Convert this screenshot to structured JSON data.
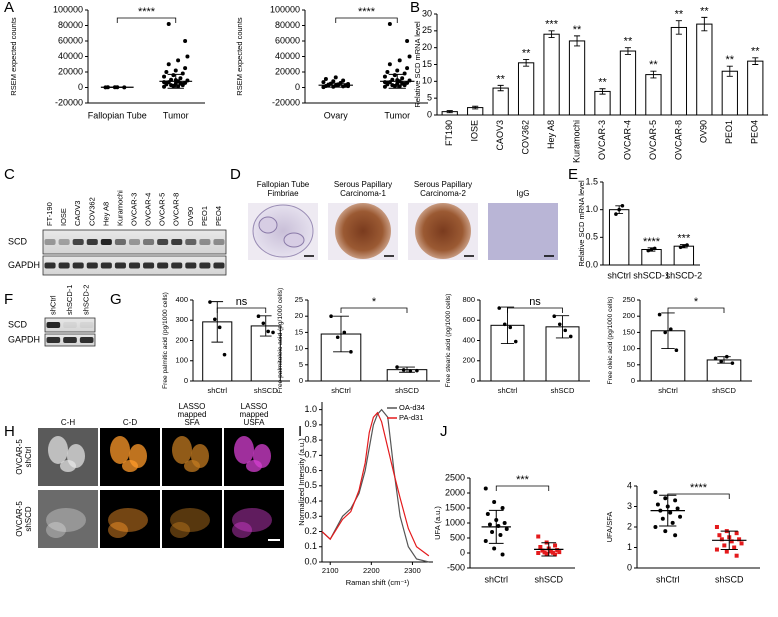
{
  "panels": [
    "A",
    "B",
    "C",
    "D",
    "E",
    "F",
    "G",
    "H",
    "I",
    "J"
  ],
  "blot_c": {
    "lanes": [
      "FT-190",
      "IOSE",
      "CAOV3",
      "COV362",
      "Hey A8",
      "Kuramochi",
      "OVCAR-3",
      "OVCAR-4",
      "OVCAR-5",
      "OVCAR-8",
      "OV90",
      "PEO1",
      "PEO4"
    ],
    "rows": [
      "SCD",
      "GAPDH"
    ]
  },
  "ihc_d": {
    "titles": [
      [
        "Fallopian Tube",
        "Fimbriae"
      ],
      [
        "Serous Papillary",
        "Carcinoma-1"
      ],
      [
        "Serous Papillary",
        "Carcinoma-2"
      ],
      [
        "IgG"
      ]
    ]
  },
  "blot_f": {
    "lanes": [
      "shCtrl",
      "shSCD-1",
      "shSCD-2"
    ],
    "rows": [
      "SCD",
      "GAPDH"
    ]
  },
  "srs_h": {
    "columns": [
      [
        "C-H"
      ],
      [
        "C-D"
      ],
      [
        "LASSO",
        "mapped",
        "SFA"
      ],
      [
        "LASSO",
        "mapped",
        "USFA"
      ]
    ],
    "rows": [
      [
        "OVCAR-5",
        "shCtrl"
      ],
      [
        "OVCAR-5",
        "shSCD"
      ]
    ]
  },
  "chart_data": [
    {
      "type": "strip",
      "ylabel": "RSEM expected counts",
      "categories": [
        "Fallopian Tube",
        "Tumor"
      ],
      "points": [
        [
          200,
          300,
          150,
          400,
          250
        ],
        [
          1000,
          2000,
          3000,
          4000,
          5000,
          6000,
          7000,
          8000,
          9000,
          10000,
          12000,
          14000,
          16000,
          18000,
          20000,
          22000,
          25000,
          30000,
          35000,
          40000,
          3000,
          5000,
          7000,
          2000,
          4500,
          6500,
          9500,
          60000,
          82000,
          1500
        ]
      ],
      "mean": [
        300,
        8000
      ],
      "sd": [
        150,
        9000
      ],
      "ylim": [
        -20000,
        100000
      ],
      "yticks": [
        -20000,
        0,
        20000,
        40000,
        60000,
        80000,
        100000
      ],
      "significance": {
        "label": "****",
        "between": [
          0,
          1
        ]
      }
    },
    {
      "type": "strip",
      "ylabel": "RSEM expected counts",
      "categories": [
        "Ovary",
        "Tumor"
      ],
      "points": [
        [
          500,
          1000,
          1500,
          2000,
          2500,
          3000,
          3500,
          4000,
          4500,
          5000,
          6000,
          7000,
          8000,
          9000,
          11000,
          13000,
          2200,
          2800,
          3300,
          1800
        ],
        [
          1000,
          2000,
          3000,
          4000,
          5000,
          6000,
          7000,
          8000,
          9000,
          10000,
          12000,
          14000,
          16000,
          18000,
          20000,
          22000,
          25000,
          30000,
          35000,
          40000,
          3000,
          5000,
          7000,
          2000,
          4500,
          6500,
          9500,
          60000,
          82000,
          1500
        ]
      ],
      "mean": [
        3000,
        8000
      ],
      "sd": [
        2500,
        9000
      ],
      "ylim": [
        -20000,
        100000
      ],
      "yticks": [
        -20000,
        0,
        20000,
        40000,
        60000,
        80000,
        100000
      ],
      "significance": {
        "label": "****",
        "between": [
          0,
          1
        ]
      }
    },
    {
      "type": "bar",
      "ylabel": "Relative SCD mRNA level",
      "categories": [
        "FT190",
        "IOSE",
        "CAOV3",
        "COV362",
        "Hey A8",
        "Kuramochi",
        "OVCAR-3",
        "OVCAR-4",
        "OVCAR-5",
        "OVCAR-8",
        "OV90",
        "PEO1",
        "PEO4"
      ],
      "values": [
        1,
        2.2,
        8,
        15.5,
        24,
        22,
        7,
        19,
        12,
        26,
        27,
        13,
        16
      ],
      "errors": [
        0.3,
        0.4,
        0.8,
        1,
        1,
        1.5,
        0.8,
        1,
        1,
        2,
        2,
        1.5,
        1
      ],
      "sig_labels": [
        null,
        null,
        "**",
        "**",
        "***",
        "**",
        "**",
        "**",
        "**",
        "**",
        "**",
        "**",
        "**"
      ],
      "ylim": [
        0,
        30
      ],
      "yticks": [
        0,
        5,
        10,
        15,
        20,
        25,
        30
      ]
    },
    {
      "type": "bar",
      "ylabel": "Relative SCD mRNA level",
      "categories": [
        "shCtrl",
        "shSCD-1",
        "shSCD-2"
      ],
      "values": [
        1.0,
        0.28,
        0.34
      ],
      "errors": [
        0.07,
        0.03,
        0.03
      ],
      "points": [
        [
          0.92,
          1.0,
          1.07
        ],
        [
          0.26,
          0.28,
          0.3
        ],
        [
          0.32,
          0.34,
          0.36
        ]
      ],
      "sig_labels": [
        null,
        "****",
        "***"
      ],
      "ylim": [
        0,
        1.5
      ],
      "yticks": [
        {
          "value": 0,
          "label": "0.0"
        },
        {
          "value": 0.5,
          "label": "0.5"
        },
        {
          "value": 1,
          "label": "1.0"
        },
        {
          "value": 1.5,
          "label": "1.5"
        }
      ]
    },
    {
      "type": "bar",
      "ylabel": "Free palmitic acid (pg/1000 cells)",
      "categories": [
        "shCtrl",
        "shSCD"
      ],
      "values": [
        292,
        272
      ],
      "errors": [
        100,
        50
      ],
      "points": [
        [
          390,
          305,
          265,
          130
        ],
        [
          320,
          285,
          245,
          240
        ]
      ],
      "ylim": [
        0,
        400
      ],
      "yticks": [
        0,
        100,
        200,
        300,
        400
      ],
      "significance": {
        "label": "ns",
        "between": [
          0,
          1
        ]
      }
    },
    {
      "type": "bar",
      "ylabel": "Free palmitoleic acid (pg/1000 cells)",
      "categories": [
        "shCtrl",
        "shSCD"
      ],
      "values": [
        14.5,
        3.5
      ],
      "errors": [
        5.5,
        0.8
      ],
      "points": [
        [
          20,
          13.5,
          15,
          9
        ],
        [
          4.3,
          3.4,
          3.1,
          3.2
        ]
      ],
      "ylim": [
        0,
        25
      ],
      "yticks": [
        0,
        5,
        10,
        15,
        20,
        25
      ],
      "significance": {
        "label": "*",
        "between": [
          0,
          1
        ]
      }
    },
    {
      "type": "bar",
      "ylabel": "Free stearic acid (pg/1000 cells)",
      "categories": [
        "shCtrl",
        "shSCD"
      ],
      "values": [
        550,
        535
      ],
      "errors": [
        180,
        110
      ],
      "points": [
        [
          720,
          560,
          530,
          390
        ],
        [
          640,
          560,
          500,
          440
        ]
      ],
      "ylim": [
        0,
        800
      ],
      "yticks": [
        0,
        200,
        400,
        600,
        800
      ],
      "significance": {
        "label": "ns",
        "between": [
          0,
          1
        ]
      }
    },
    {
      "type": "bar",
      "ylabel": "Free oleic acid (pg/1000 cells)",
      "categories": [
        "shCtrl",
        "shSCD"
      ],
      "values": [
        155,
        65
      ],
      "errors": [
        55,
        10
      ],
      "points": [
        [
          205,
          150,
          160,
          95
        ],
        [
          70,
          60,
          75,
          55
        ]
      ],
      "ylim": [
        0,
        250
      ],
      "yticks": [
        0,
        50,
        100,
        150,
        200,
        250
      ],
      "significance": {
        "label": "*",
        "between": [
          0,
          1
        ]
      }
    },
    {
      "type": "line",
      "xlabel": "Raman shift (cm⁻¹)",
      "ylabel": "Normalized Intensity (a.u.)",
      "x": [
        2080,
        2100,
        2130,
        2150,
        2170,
        2185,
        2195,
        2205,
        2215,
        2225,
        2240,
        2255,
        2270,
        2290,
        2310,
        2340
      ],
      "series": [
        {
          "name": "OA-d34",
          "color": "#555555",
          "values": [
            0.2,
            0.15,
            0.3,
            0.35,
            0.45,
            0.6,
            0.75,
            0.9,
            0.97,
            1.0,
            0.95,
            0.6,
            0.3,
            0.1,
            0.02,
            0.0
          ]
        },
        {
          "name": "PA-d31",
          "color": "#e41a1c",
          "values": [
            0.2,
            0.15,
            0.28,
            0.33,
            0.47,
            0.65,
            0.85,
            0.95,
            0.98,
            0.92,
            0.75,
            0.58,
            0.42,
            0.22,
            0.1,
            0.04
          ]
        }
      ],
      "xlim": [
        2080,
        2350
      ],
      "xticks": [
        2100,
        2200,
        2300
      ],
      "ylim": [
        0,
        1.05
      ],
      "yticks": [
        {
          "value": 0,
          "label": "0.0"
        },
        {
          "value": 0.1,
          "label": "0.1"
        },
        {
          "value": 0.2,
          "label": "0.2"
        },
        {
          "value": 0.3,
          "label": "0.3"
        },
        {
          "value": 0.4,
          "label": "0.4"
        },
        {
          "value": 0.5,
          "label": "0.5"
        },
        {
          "value": 0.6,
          "label": "0.6"
        },
        {
          "value": 0.7,
          "label": "0.7"
        },
        {
          "value": 0.8,
          "label": "0.8"
        },
        {
          "value": 0.9,
          "label": "0.9"
        },
        {
          "value": 1,
          "label": "1.0"
        }
      ],
      "legend": "top-right"
    },
    {
      "type": "strip",
      "ylabel": "UFA (a.u.)",
      "categories": [
        "shCtrl",
        "shSCD"
      ],
      "points": [
        [
          2150,
          1700,
          1500,
          1300,
          1100,
          1000,
          950,
          900,
          800,
          700,
          600,
          400,
          150,
          -50
        ],
        [
          550,
          350,
          250,
          200,
          150,
          100,
          80,
          50,
          30,
          20,
          10,
          0,
          -20,
          -50
        ]
      ],
      "mean": [
        870,
        120
      ],
      "sd": [
        550,
        220
      ],
      "colors": [
        "#000000",
        "#e41a1c"
      ],
      "markers": [
        "circle",
        "square"
      ],
      "ylim": [
        -500,
        2500
      ],
      "yticks": [
        -500,
        0,
        500,
        1000,
        1500,
        2000,
        2500
      ],
      "significance": {
        "label": "***",
        "between": [
          0,
          1
        ]
      }
    },
    {
      "type": "strip",
      "ylabel": "UFA/SFA",
      "categories": [
        "shCtrl",
        "shSCD"
      ],
      "points": [
        [
          3.7,
          3.4,
          3.3,
          3.1,
          3.0,
          2.9,
          2.8,
          2.7,
          2.5,
          2.4,
          2.2,
          2.0,
          1.8,
          1.6
        ],
        [
          2.0,
          1.8,
          1.7,
          1.6,
          1.5,
          1.4,
          1.4,
          1.3,
          1.2,
          1.1,
          1.0,
          0.9,
          0.8,
          0.6
        ]
      ],
      "mean": [
        2.8,
        1.35
      ],
      "sd": [
        0.75,
        0.45
      ],
      "colors": [
        "#000000",
        "#e41a1c"
      ],
      "markers": [
        "circle",
        "square"
      ],
      "ylim": [
        0,
        4
      ],
      "yticks": [
        0,
        1,
        2,
        3,
        4
      ],
      "significance": {
        "label": "****",
        "between": [
          0,
          1
        ]
      }
    }
  ]
}
